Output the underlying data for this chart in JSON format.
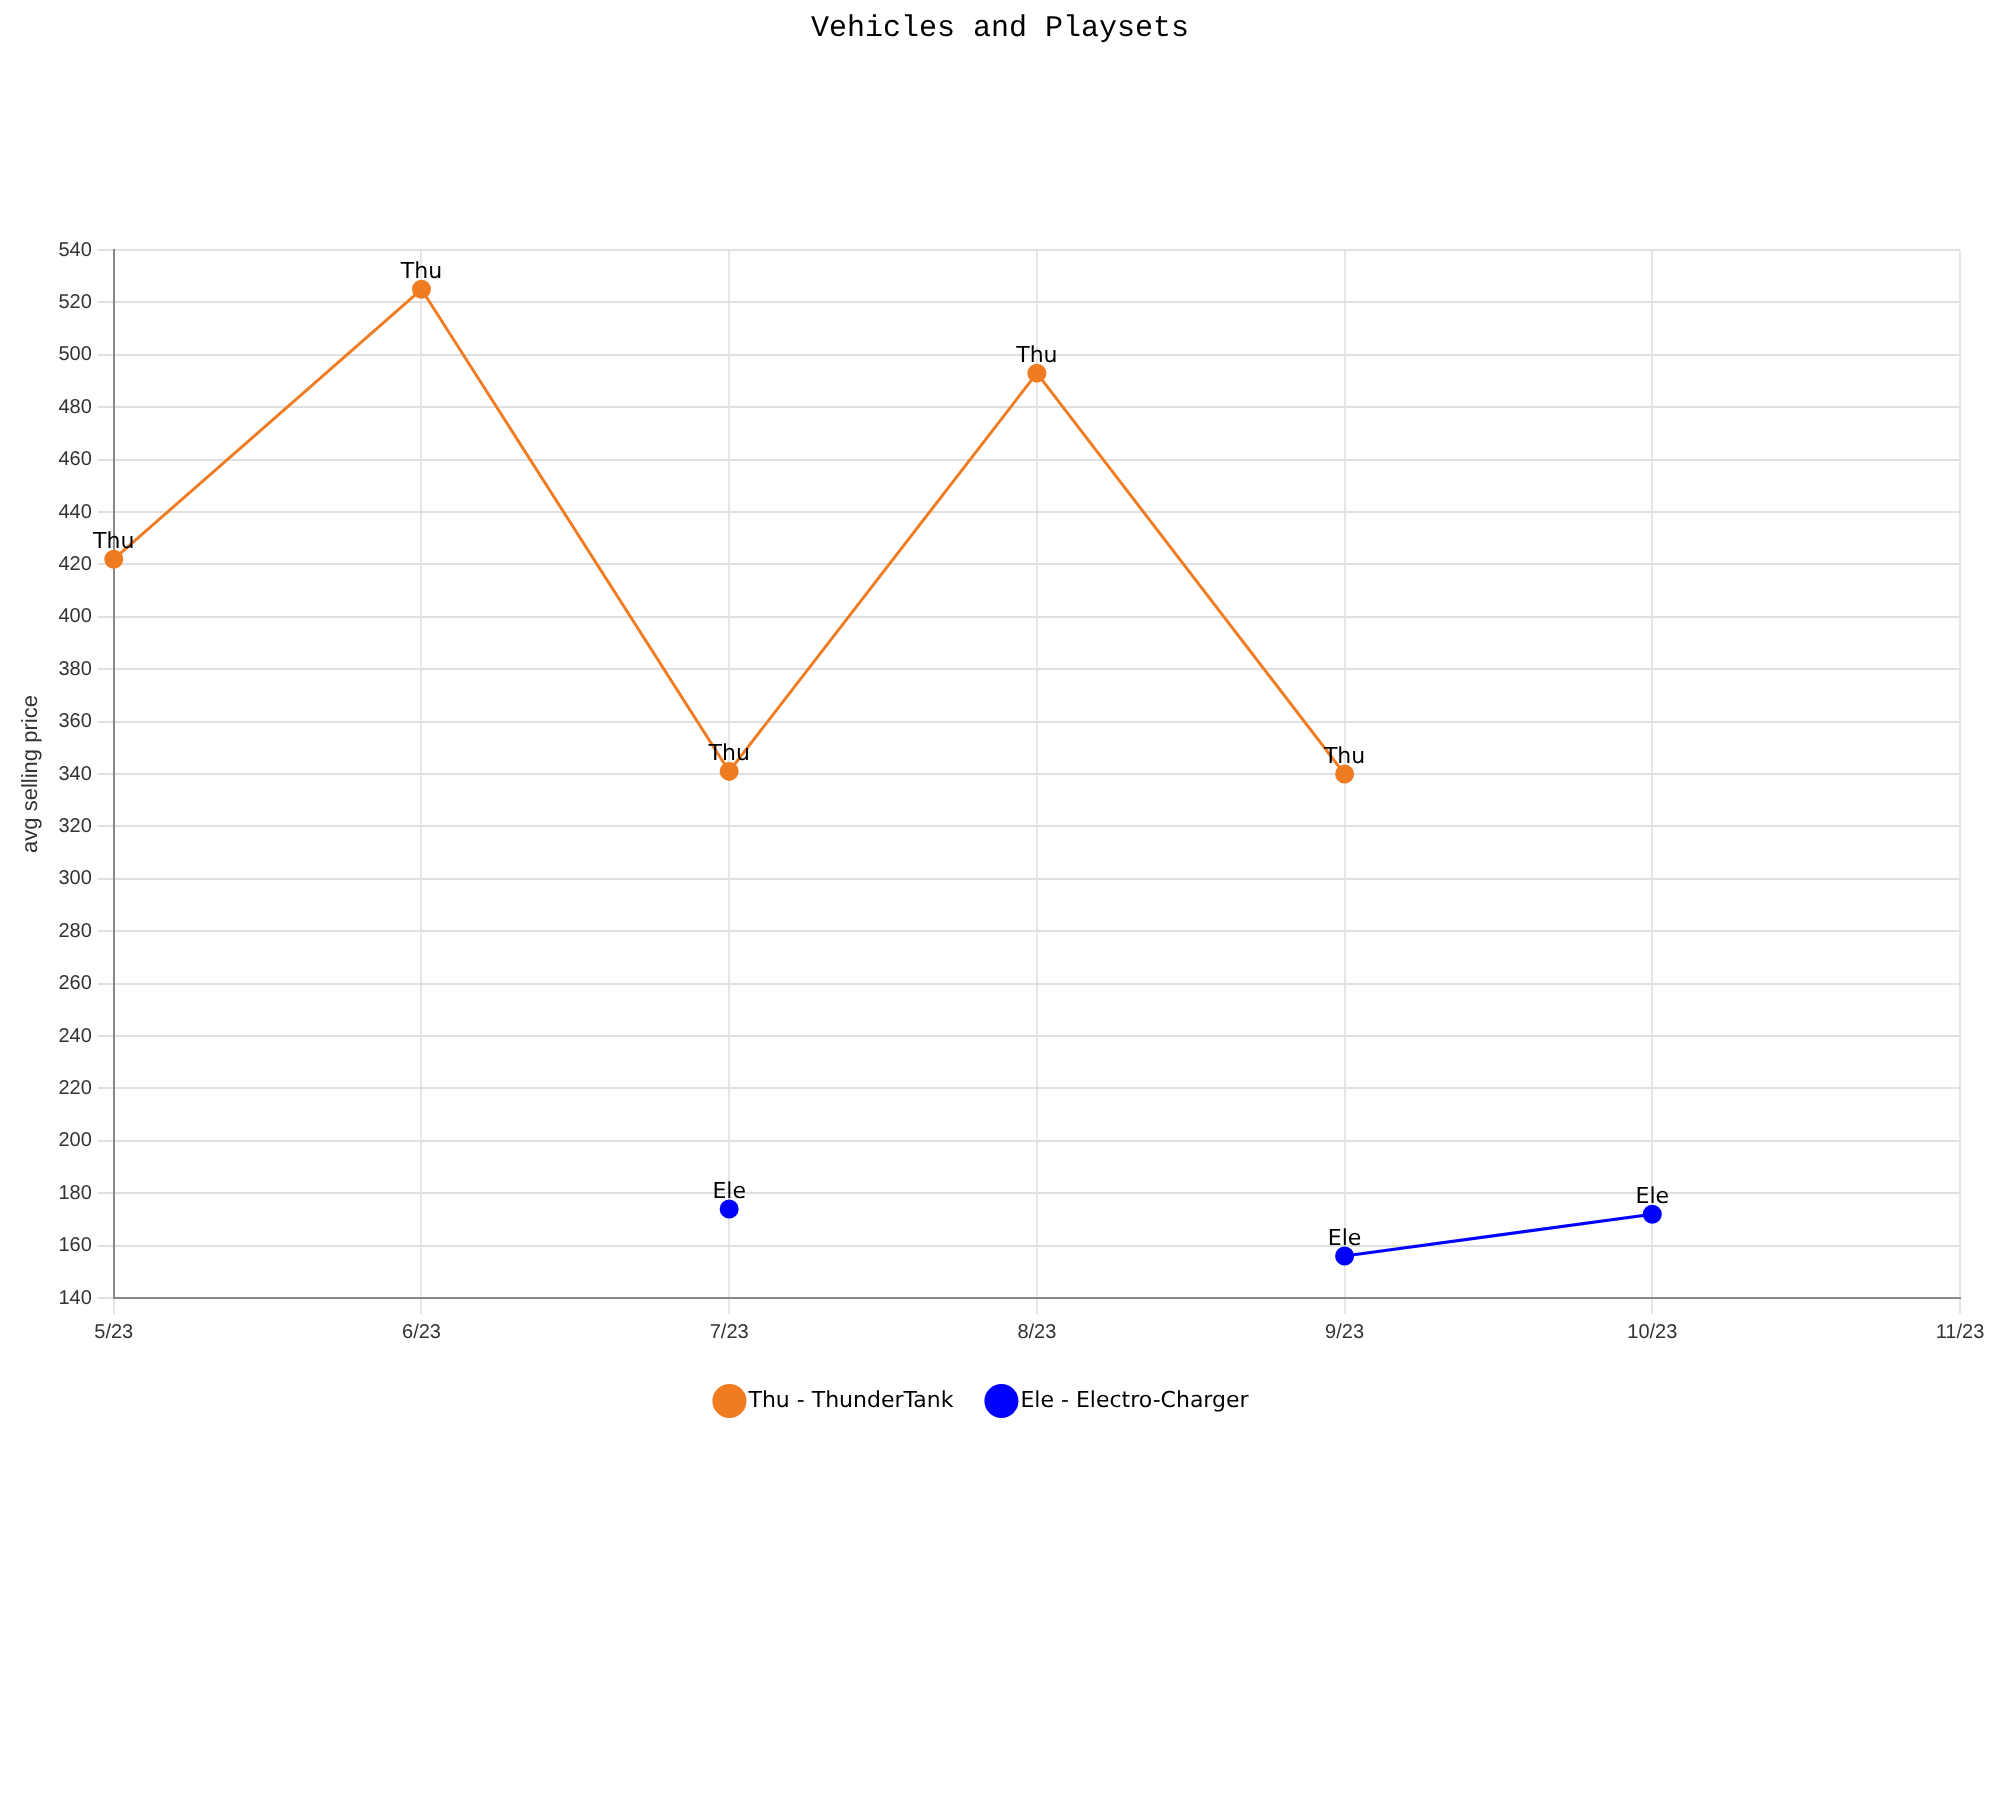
{
  "chart_data": {
    "type": "line",
    "title": "Vehicles and Playsets",
    "ylabel": "avg selling price",
    "categories": [
      "5/23",
      "6/23",
      "7/23",
      "8/23",
      "9/23",
      "10/23",
      "11/23"
    ],
    "series": [
      {
        "name": "Thu - ThunderTank",
        "color": "#f07c22",
        "values": [
          422,
          525,
          341,
          493,
          340,
          null,
          null
        ],
        "value_labels": [
          "Thu",
          "Thu",
          "Thu",
          "Thu",
          "Thu",
          null,
          null
        ]
      },
      {
        "name": "Ele - Electro-Charger",
        "color": "#0000ff",
        "values": [
          null,
          null,
          174,
          null,
          156,
          172,
          null
        ],
        "value_labels": [
          null,
          null,
          "Ele",
          null,
          "Ele",
          "Ele",
          null
        ]
      }
    ],
    "ylim": [
      140,
      540
    ],
    "yticks": [
      140,
      160,
      180,
      200,
      220,
      240,
      260,
      280,
      300,
      320,
      340,
      360,
      380,
      400,
      420,
      440,
      460,
      480,
      500,
      520,
      540
    ],
    "grid": true,
    "legend": "bottom",
    "marker": "circle",
    "line_style": "solid"
  }
}
